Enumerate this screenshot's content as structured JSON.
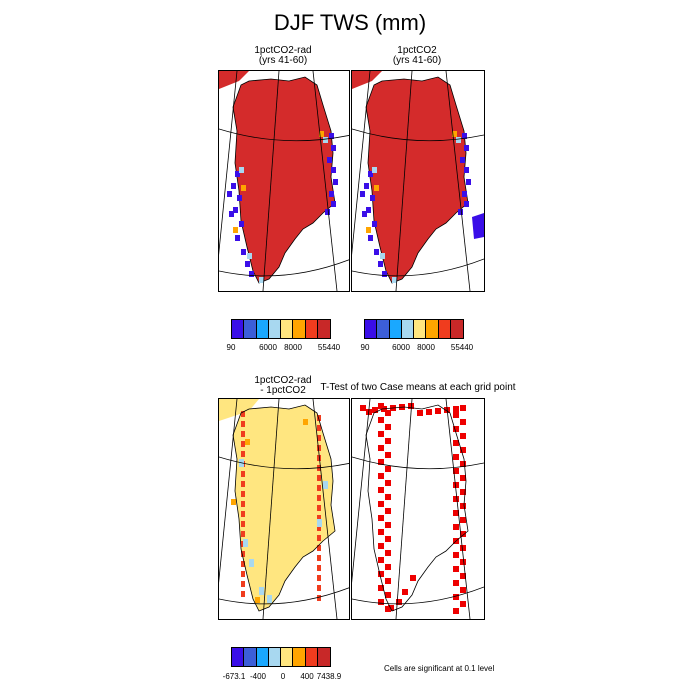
{
  "title": "DJF TWS (mm)",
  "colors": {
    "greenland_fill": "#d42b2b",
    "ocean_fill": "#ffffff",
    "diff_fill": "#ffe680",
    "sig_fill": "#ee0000",
    "boundary_stroke": "#000000"
  },
  "chart_data": [
    {
      "type": "heatmap",
      "title": "1pctCO2-rad",
      "subtitle": "(yrs 41-60)",
      "legend_colors": [
        "#3a0ee8",
        "#3c5ed8",
        "#1aa8ff",
        "#a8d8f0",
        "#ffe680",
        "#ffa500",
        "#f03c1e",
        "#c82828"
      ],
      "legend_ticks": [
        "90",
        "6000",
        "8000",
        "55440"
      ]
    },
    {
      "type": "heatmap",
      "title": "1pctCO2",
      "subtitle": "(yrs 41-60)",
      "legend_colors": [
        "#3a0ee8",
        "#3c5ed8",
        "#1aa8ff",
        "#a8d8f0",
        "#ffe680",
        "#ffa500",
        "#f03c1e",
        "#c82828"
      ],
      "legend_ticks": [
        "90",
        "6000",
        "8000",
        "55440"
      ]
    },
    {
      "type": "heatmap",
      "title": "1pctCO2-rad",
      "subtitle": "- 1pctCO2",
      "legend_colors": [
        "#3a0ee8",
        "#3c5ed8",
        "#1aa8ff",
        "#a8d8f0",
        "#ffe680",
        "#ffa500",
        "#f03c1e",
        "#c82828"
      ],
      "legend_ticks": [
        "-673.1",
        "-400",
        "0",
        "400",
        "7438.9"
      ]
    },
    {
      "type": "heatmap",
      "title": "T-Test of two Case means at each grid point",
      "note": "Cells are significant at 0.1 level"
    }
  ]
}
